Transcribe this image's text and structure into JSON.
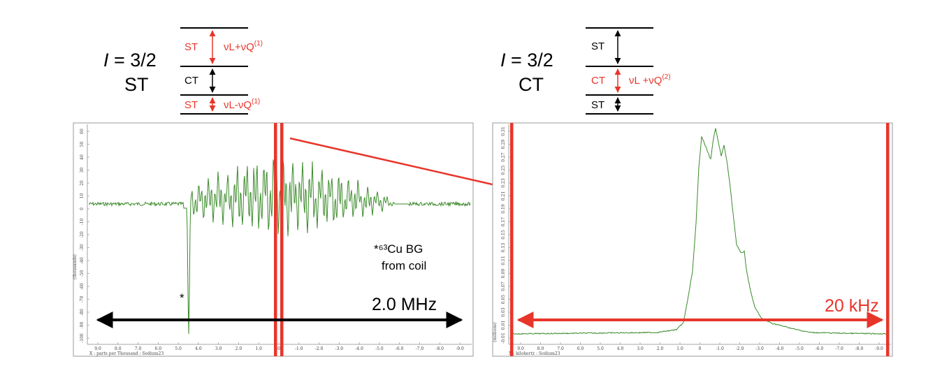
{
  "colors": {
    "red": "#e8352a",
    "green": "#3a8a2a",
    "black": "#000000"
  },
  "left": {
    "spin_prefix": "I",
    "spin_suffix": " = 3/2",
    "mode": "ST",
    "levels": {
      "top": {
        "label": "ST",
        "freq": "νL+νQ",
        "freq_sub": "L",
        "sup": "(1)"
      },
      "middle": {
        "label": "CT"
      },
      "bottom": {
        "label": "ST",
        "freq": "νL-νQ",
        "freq_sub": "L",
        "sup": "(1)"
      }
    },
    "spectrum": {
      "x_axis_label": "X : parts per Thousand : Sodium23",
      "y_axis_label": "(thousands)",
      "x_ticks": [
        "9.0",
        "8.0",
        "7.0",
        "6.0",
        "5.0",
        "4.0",
        "3.0",
        "2.0",
        "1.0",
        "0",
        "-1.0",
        "-2.0",
        "-3.0",
        "-4.0",
        "-5.0",
        "-6.0",
        "-7.0",
        "-8.0",
        "-9.0"
      ],
      "y_ticks": [
        "60",
        "50",
        "40",
        "30",
        "20",
        "10",
        "0",
        "-10",
        "-20",
        "-30",
        "-40",
        "-50",
        "-60",
        "-70",
        "-80",
        "-90",
        "-100"
      ],
      "annotation_line1": "*⁶³Cu BG",
      "annotation_line2": "from coil",
      "star": "*",
      "scale_label": "2.0 MHz"
    }
  },
  "right": {
    "spin_prefix": "I",
    "spin_suffix": " = 3/2",
    "mode": "CT",
    "levels": {
      "top": {
        "label": "ST"
      },
      "middle": {
        "label": "CT",
        "freq": "νL +νQ",
        "sup": "(2)"
      },
      "bottom": {
        "label": "ST"
      }
    },
    "spectrum": {
      "x_axis_label": "X : kilohertz : Sodium23",
      "y_axis_label": "(millions)",
      "x_ticks": [
        "9.0",
        "8.0",
        "7.0",
        "6.0",
        "5.0",
        "4.0",
        "3.0",
        "2.0",
        "1.0",
        "0",
        "-1.0",
        "-2.0",
        "-3.0",
        "-4.0",
        "-5.0",
        "-6.0",
        "-7.0",
        "-8.0",
        "-9.0"
      ],
      "y_ticks": [
        "0.31",
        "0.29",
        "0.27",
        "0.25",
        "0.23",
        "0.21",
        "0.19",
        "0.17",
        "0.15",
        "0.13",
        "0.11",
        "0.09",
        "0.07",
        "0.05",
        "0.03",
        "0.01",
        "-0.01"
      ],
      "scale_label": "20 kHz"
    }
  }
}
